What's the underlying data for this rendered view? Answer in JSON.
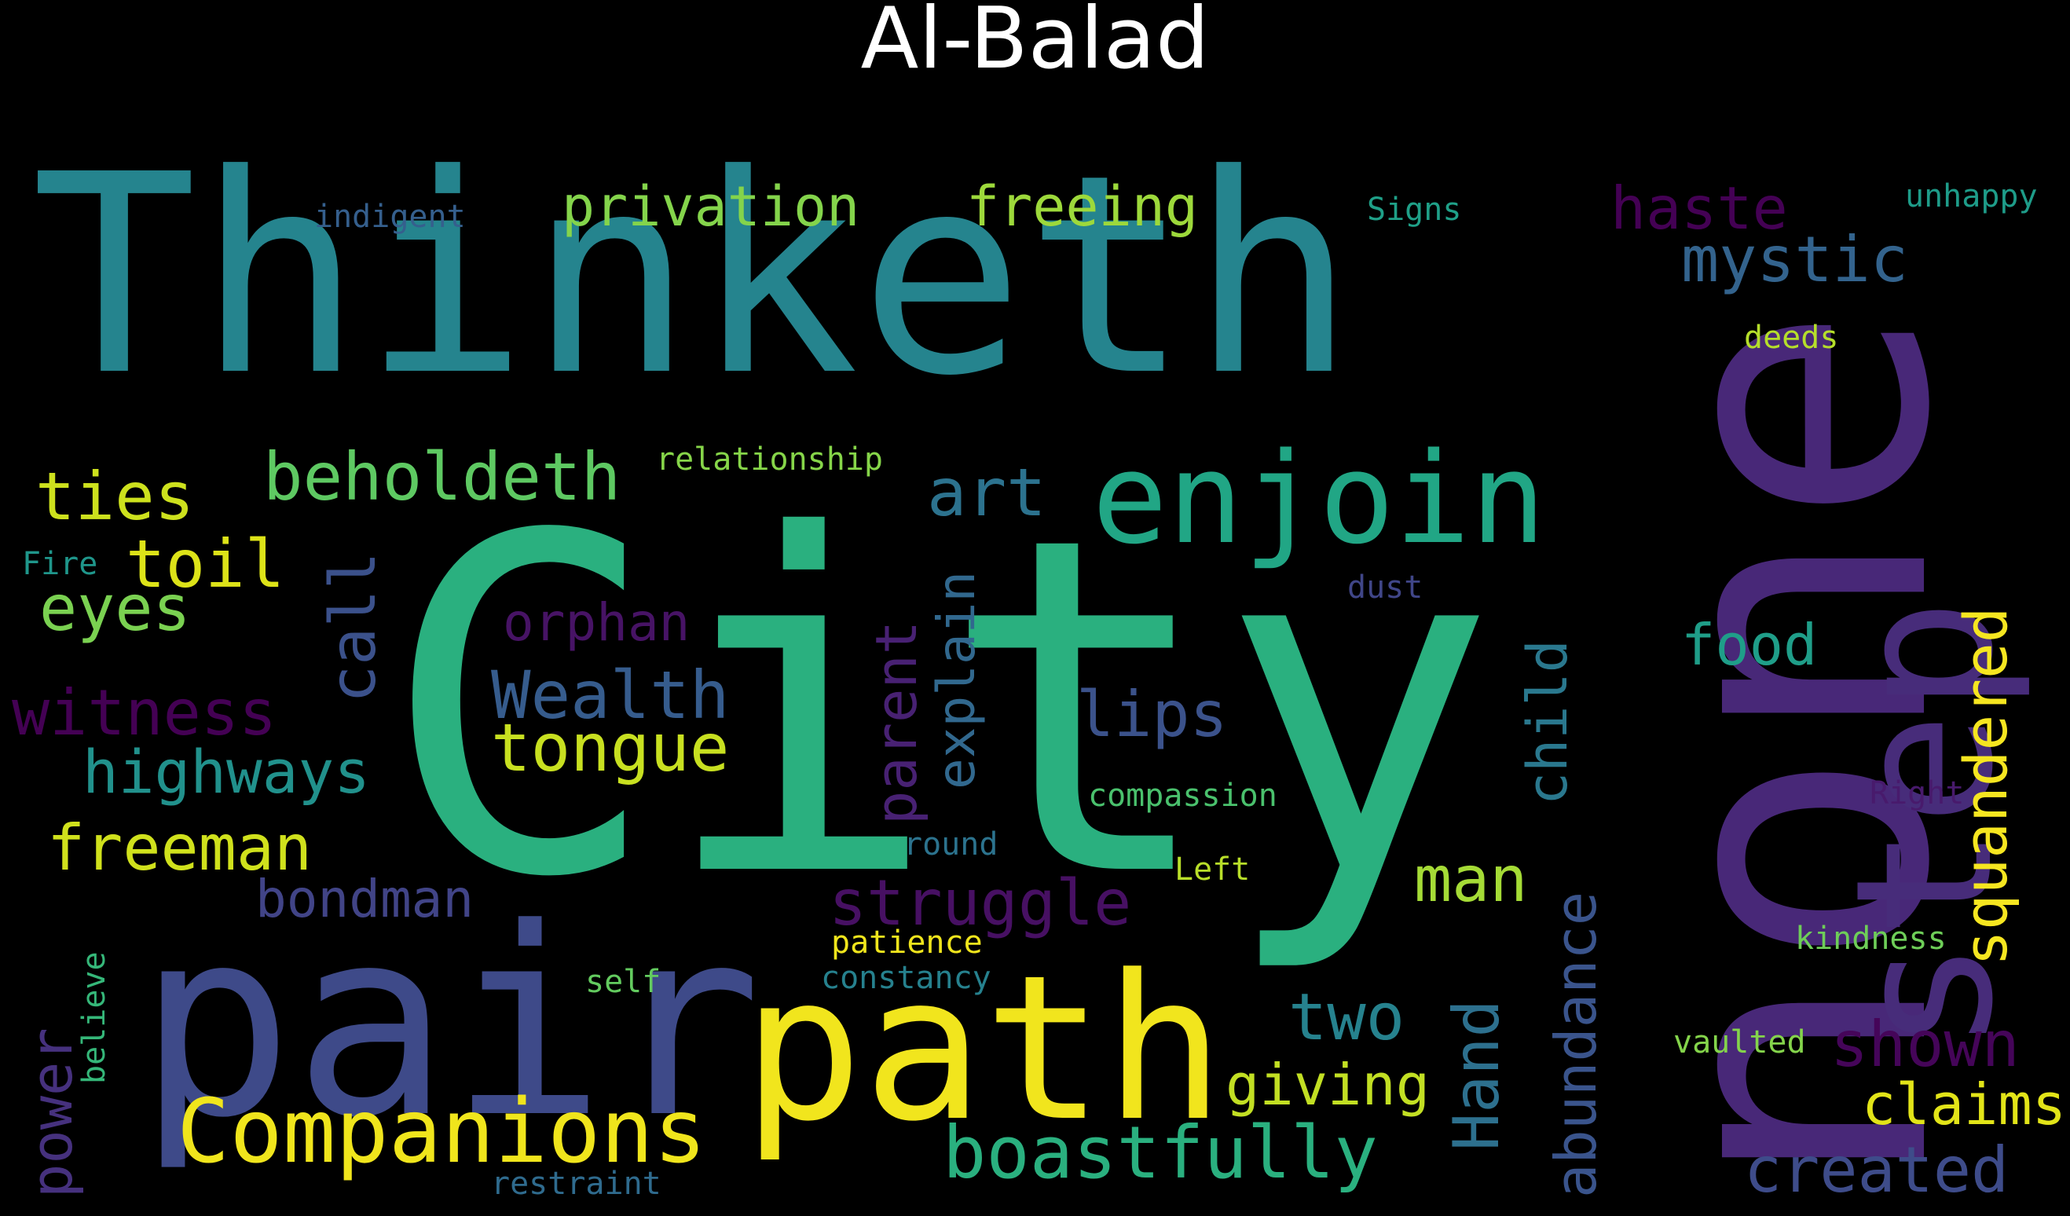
{
  "title": "Al-Balad",
  "words": [
    {
      "text": "City",
      "color": "#2ab07f"
    },
    {
      "text": "Thinketh",
      "color": "#25848e"
    },
    {
      "text": "none",
      "color": "#482878"
    },
    {
      "text": "pair",
      "color": "#3e4a89"
    },
    {
      "text": "path",
      "color": "#f1e51d"
    },
    {
      "text": "step",
      "color": "#472c7a"
    },
    {
      "text": "enjoin",
      "color": "#21a685"
    },
    {
      "text": "Companions",
      "color": "#f0e51c"
    },
    {
      "text": "boastfully",
      "color": "#2ab07f"
    },
    {
      "text": "privation",
      "color": "#84d44b"
    },
    {
      "text": "freeing",
      "color": "#9dd93b"
    },
    {
      "text": "mystic",
      "color": "#33638d"
    },
    {
      "text": "haste",
      "color": "#440154"
    },
    {
      "text": "beholdeth",
      "color": "#5ec962"
    },
    {
      "text": "ties",
      "color": "#cde11d"
    },
    {
      "text": "art",
      "color": "#2c728e"
    },
    {
      "text": "toil",
      "color": "#dde318"
    },
    {
      "text": "eyes",
      "color": "#7ad151"
    },
    {
      "text": "call",
      "color": "#3b518b"
    },
    {
      "text": "witness",
      "color": "#440154"
    },
    {
      "text": "Wealth",
      "color": "#365c8d"
    },
    {
      "text": "tongue",
      "color": "#c8e020"
    },
    {
      "text": "highways",
      "color": "#21918c"
    },
    {
      "text": "freeman",
      "color": "#d0e11c"
    },
    {
      "text": "orphan",
      "color": "#471365"
    },
    {
      "text": "lips",
      "color": "#3b528b"
    },
    {
      "text": "explain",
      "color": "#31688e"
    },
    {
      "text": "parent",
      "color": "#482173"
    },
    {
      "text": "struggle",
      "color": "#471063"
    },
    {
      "text": "bondman",
      "color": "#414487"
    },
    {
      "text": "man",
      "color": "#a5db36"
    },
    {
      "text": "child",
      "color": "#2a788e"
    },
    {
      "text": "Hand",
      "color": "#2d708e"
    },
    {
      "text": "abundance",
      "color": "#3a548c"
    },
    {
      "text": "food",
      "color": "#1f9e89"
    },
    {
      "text": "squandered",
      "color": "#f6e620"
    },
    {
      "text": "two",
      "color": "#26828e"
    },
    {
      "text": "giving",
      "color": "#c2df23"
    },
    {
      "text": "shown",
      "color": "#450559"
    },
    {
      "text": "claims",
      "color": "#e2e418"
    },
    {
      "text": "created",
      "color": "#3e4c8a"
    },
    {
      "text": "power",
      "color": "#46317e"
    },
    {
      "text": "believe",
      "color": "#35b779"
    },
    {
      "text": "indigent",
      "color": "#355f8d"
    },
    {
      "text": "Signs",
      "color": "#1fa088"
    },
    {
      "text": "unhappy",
      "color": "#1e9c89"
    },
    {
      "text": "deeds",
      "color": "#b5de2b"
    },
    {
      "text": "relationship",
      "color": "#86d549"
    },
    {
      "text": "Fire",
      "color": "#1f968b"
    },
    {
      "text": "dust",
      "color": "#404688"
    },
    {
      "text": "compassion",
      "color": "#4ac16d"
    },
    {
      "text": "Right",
      "color": "#481a6c"
    },
    {
      "text": "round",
      "color": "#2c738e"
    },
    {
      "text": "Left",
      "color": "#b8de29"
    },
    {
      "text": "patience",
      "color": "#f0e51c"
    },
    {
      "text": "kindness",
      "color": "#6ece58"
    },
    {
      "text": "self",
      "color": "#63cb5f"
    },
    {
      "text": "constancy",
      "color": "#26818e"
    },
    {
      "text": "vaulted",
      "color": "#84d44b"
    },
    {
      "text": "restraint",
      "color": "#2f6b8e"
    }
  ]
}
